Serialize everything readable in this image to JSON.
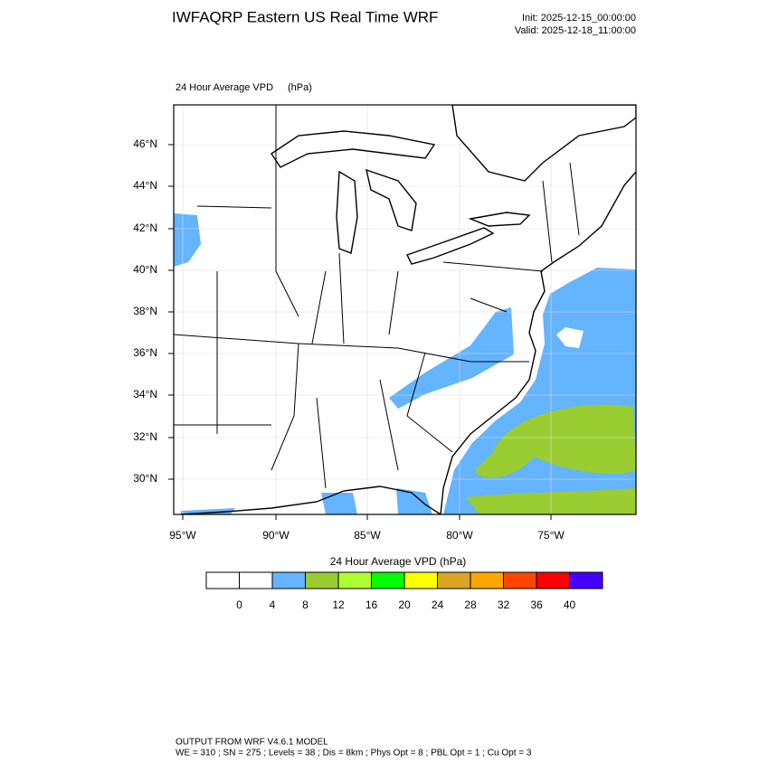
{
  "header": {
    "title": "IWFAQRP Eastern US Real Time WRF",
    "init": "Init: 2025-12-15_00:00:00",
    "valid": "Valid: 2025-12-18_11:00:00"
  },
  "map": {
    "field": "24 Hour Average VPD",
    "units": "(hPa)",
    "lat_labels": [
      "46°N",
      "44°N",
      "42°N",
      "40°N",
      "38°N",
      "36°N",
      "34°N",
      "32°N",
      "30°N"
    ],
    "lon_labels": [
      "95°W",
      "90°W",
      "85°W",
      "80°W",
      "75°W"
    ]
  },
  "colorbar": {
    "title": "24 Hour Average VPD  (hPa)",
    "colors": [
      "#ffffff",
      "#ffffff",
      "#64b4ff",
      "#9acd32",
      "#adff2f",
      "#00ff00",
      "#ffff00",
      "#daa520",
      "#ffa500",
      "#ff4500",
      "#ff0000",
      "#4400ff"
    ],
    "labels": [
      0,
      4,
      8,
      12,
      16,
      20,
      24,
      28,
      32,
      36,
      40
    ]
  },
  "footer": {
    "line1": "OUTPUT FROM WRF V4.6.1 MODEL",
    "line2": "WE = 310 ; SN = 275 ; Levels = 38 ; Dis = 8km ; Phys Opt = 8 ; PBL Opt = 1 ; Cu Opt = 3"
  }
}
